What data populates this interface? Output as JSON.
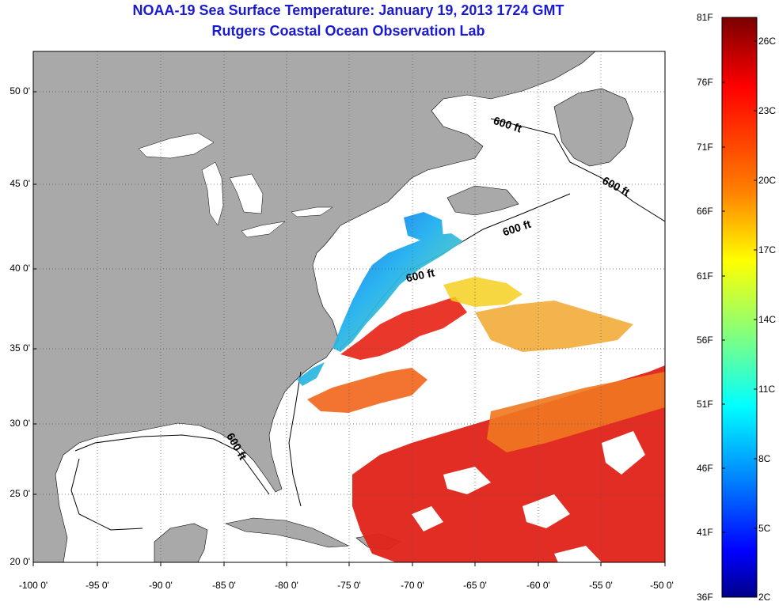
{
  "title": "NOAA-19 Sea Surface Temperature:  January 19, 2013 1724 GMT",
  "subtitle": "Rutgers Coastal Ocean Observation Lab",
  "lat_ticks": [
    "50 0'",
    "45 0'",
    "40 0'",
    "35 0'",
    "30 0'",
    "25 0'",
    "20 0'"
  ],
  "lon_ticks": [
    "-100 0'",
    "-95 0'",
    "-90 0'",
    "-85 0'",
    "-80 0'",
    "-75 0'",
    "-70 0'",
    "-65 0'",
    "-60 0'",
    "-55 0'",
    "-50 0'"
  ],
  "contour_labels": [
    "600 ft",
    "600 ft",
    "600 ft",
    "600 ft",
    "600 ft"
  ],
  "colorbar": {
    "fahrenheit": [
      "81F",
      "76F",
      "71F",
      "66F",
      "61F",
      "56F",
      "51F",
      "46F",
      "41F",
      "36F"
    ],
    "celsius": [
      "26C",
      "23C",
      "20C",
      "17C",
      "14C",
      "11C",
      "8C",
      "5C",
      "2C"
    ],
    "colors": [
      "#800000",
      "#ff0000",
      "#ff8000",
      "#ffff00",
      "#80ff80",
      "#00ffff",
      "#0080ff",
      "#0000ff",
      "#000080"
    ]
  },
  "colors": {
    "land": "#a9a9a9",
    "title": "#1a1ad0",
    "warm_water": "#e8261a",
    "cool_water": "#2a6fe8"
  }
}
